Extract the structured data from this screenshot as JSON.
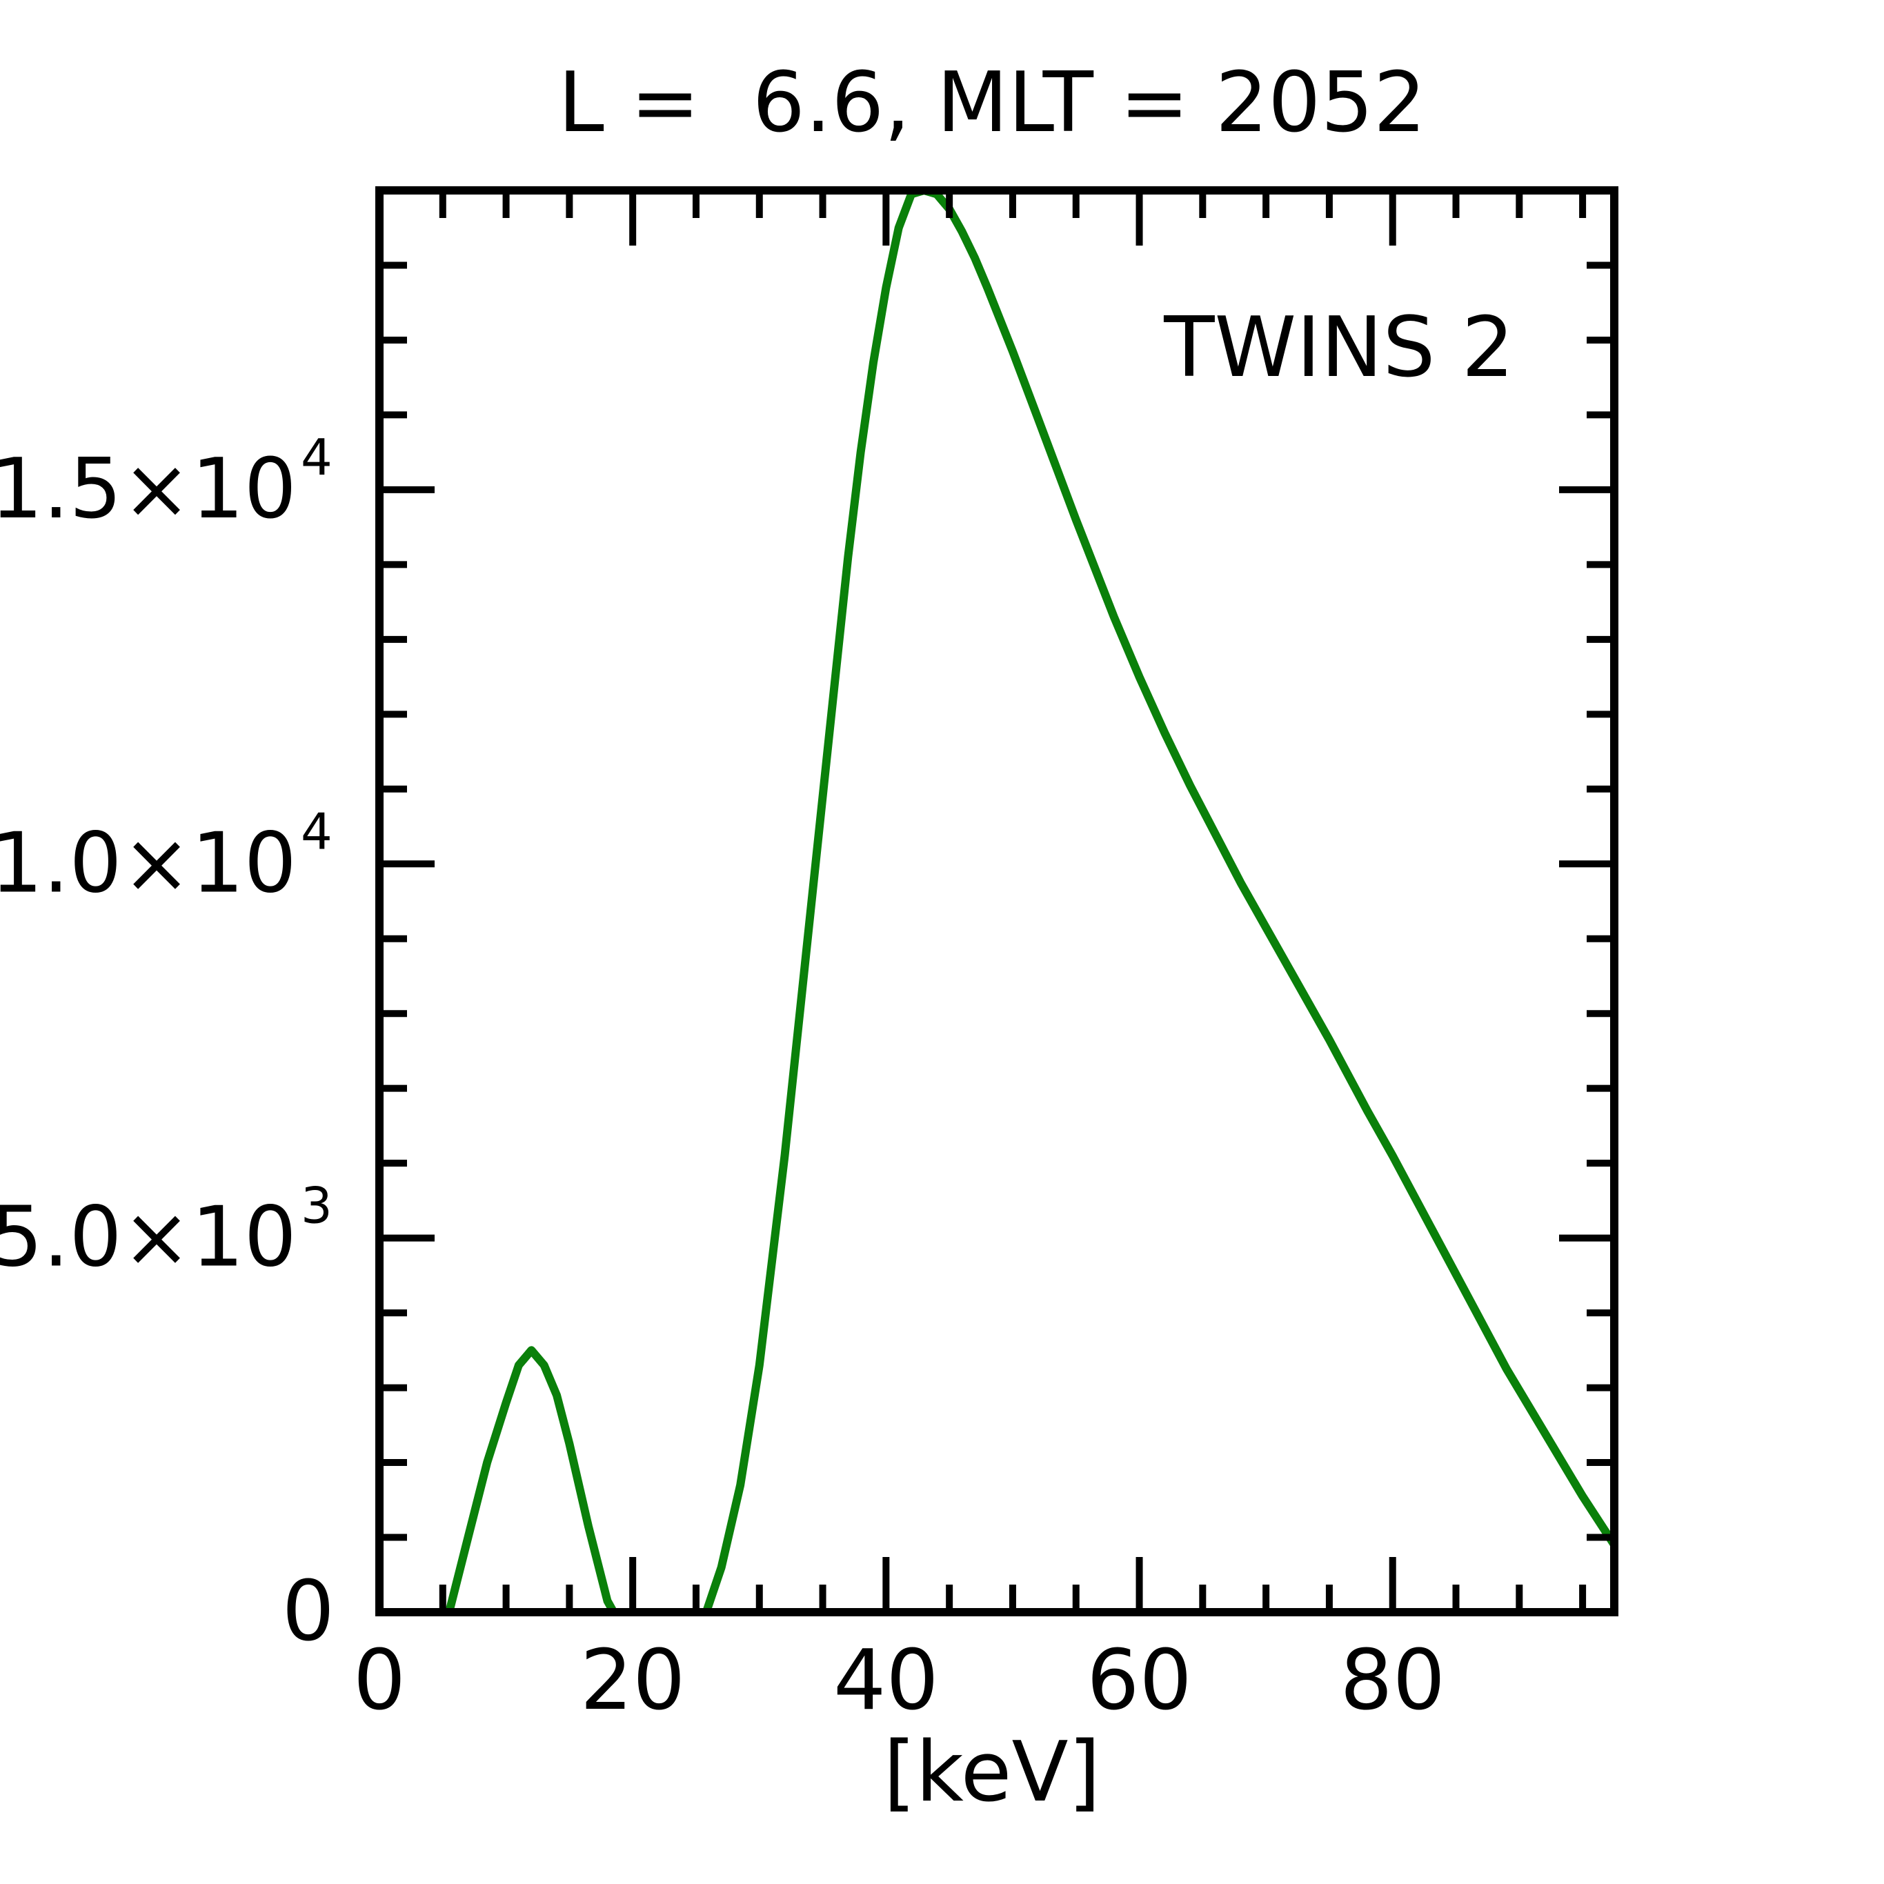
{
  "chart_data": {
    "type": "line",
    "title": "L =  6.6, MLT = 2052",
    "xlabel": "[keV]",
    "ylabel": "",
    "xlim": [
      0,
      97.5
    ],
    "ylim": [
      0,
      19000
    ],
    "x_ticks": [
      {
        "value": 0,
        "label": "0"
      },
      {
        "value": 20,
        "label": "20"
      },
      {
        "value": 40,
        "label": "40"
      },
      {
        "value": 60,
        "label": "60"
      },
      {
        "value": 80,
        "label": "80"
      }
    ],
    "y_ticks": [
      {
        "value": 0,
        "mantissa": "0",
        "exponent": ""
      },
      {
        "value": 5000,
        "mantissa": "5.0×10",
        "exponent": "3"
      },
      {
        "value": 10000,
        "mantissa": "1.0×10",
        "exponent": "4"
      },
      {
        "value": 15000,
        "mantissa": "1.5×10",
        "exponent": "4"
      }
    ],
    "x_minor_step": 5,
    "y_minor_step": 1000,
    "grid": false,
    "legend_position": "top-right",
    "series": [
      {
        "name": "TWINS 2",
        "color": "#0a800a",
        "segments": [
          {
            "x": [
              5.5,
              7,
              8.5,
              10,
              11,
              12,
              13,
              14,
              15,
              16.5,
              18,
              18.5
            ],
            "y": [
              0,
              1000,
              2000,
              2800,
              3300,
              3500,
              3300,
              2900,
              2250,
              1150,
              150,
              0
            ]
          },
          {
            "x": [
              25.8,
              27,
              28.5,
              30,
              32,
              34,
              36,
              37,
              38,
              39,
              40,
              41,
              42,
              43,
              44,
              45,
              46,
              47,
              48,
              50,
              52,
              55,
              58,
              60,
              62,
              64,
              66,
              68,
              70,
              72,
              75,
              78,
              80,
              83,
              86,
              89,
              92,
              95,
              97.5
            ],
            "y": [
              0,
              600,
              1700,
              3300,
              6100,
              9300,
              12500,
              14100,
              15500,
              16700,
              17700,
              18500,
              18950,
              19000,
              18950,
              18750,
              18450,
              18100,
              17700,
              16850,
              15950,
              14600,
              13300,
              12500,
              11750,
              11050,
              10400,
              9750,
              9150,
              8550,
              7650,
              6700,
              6100,
              5150,
              4200,
              3250,
              2400,
              1550,
              900
            ]
          }
        ]
      }
    ]
  }
}
